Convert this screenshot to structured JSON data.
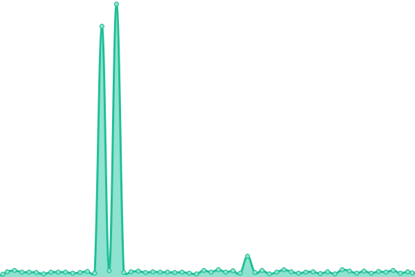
{
  "chart_data": {
    "type": "area",
    "title": "",
    "xlabel": "",
    "ylabel": "",
    "grid": false,
    "legend": "none",
    "curve": "smooth",
    "markers": true,
    "ylim": [
      0,
      394
    ],
    "colors": {
      "line": "#1fbf97",
      "fill": "#8ee2cf",
      "marker_fill": "#8ee2cf",
      "marker_stroke": "#1fbf97"
    },
    "x": [
      0,
      1,
      2,
      3,
      4,
      5,
      6,
      7,
      8,
      9,
      10,
      11,
      12,
      13,
      14,
      15,
      16,
      17,
      18,
      19,
      20,
      21,
      22,
      23,
      24,
      25,
      26,
      27,
      28,
      29,
      30,
      31,
      32,
      33,
      34,
      35,
      36,
      37,
      38,
      39,
      40,
      41,
      42,
      43,
      44,
      45,
      46,
      47,
      48,
      49,
      50,
      51,
      52,
      53,
      54,
      55,
      56,
      57
    ],
    "values": [
      2,
      7.5,
      9.5,
      7,
      7,
      6.5,
      4.5,
      7,
      7,
      7,
      5.5,
      6.5,
      8,
      5.5,
      362,
      9,
      394,
      6.5,
      7.5,
      8.5,
      6.5,
      7.5,
      7,
      7,
      6.5,
      7,
      5.5,
      4.5,
      9.5,
      7,
      10.5,
      7,
      9,
      5.5,
      30,
      6.5,
      9.5,
      4.5,
      7,
      10.5,
      7.5,
      5.5,
      7,
      7.5,
      5,
      7.5,
      4.5,
      10.5,
      8.5,
      5.5,
      8.5,
      5.5,
      8,
      7,
      9.5,
      5.5,
      7.5,
      6
    ]
  }
}
